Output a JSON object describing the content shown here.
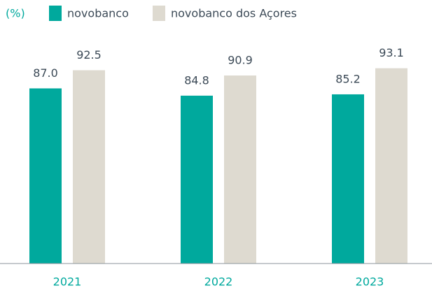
{
  "chart_data": {
    "type": "bar",
    "unit_label": "(%)",
    "categories": [
      "2021",
      "2022",
      "2023"
    ],
    "series": [
      {
        "name": "novobanco",
        "color": "#00a99d",
        "values": [
          87.0,
          84.8,
          85.2
        ],
        "value_labels": [
          "87.0",
          "84.8",
          "85.2"
        ]
      },
      {
        "name": "novobanco dos Açores",
        "color": "#dedad0",
        "values": [
          92.5,
          90.9,
          93.1
        ],
        "value_labels": [
          "92.5",
          "90.9",
          "93.1"
        ]
      }
    ],
    "ylim": [
      34,
      100
    ]
  }
}
